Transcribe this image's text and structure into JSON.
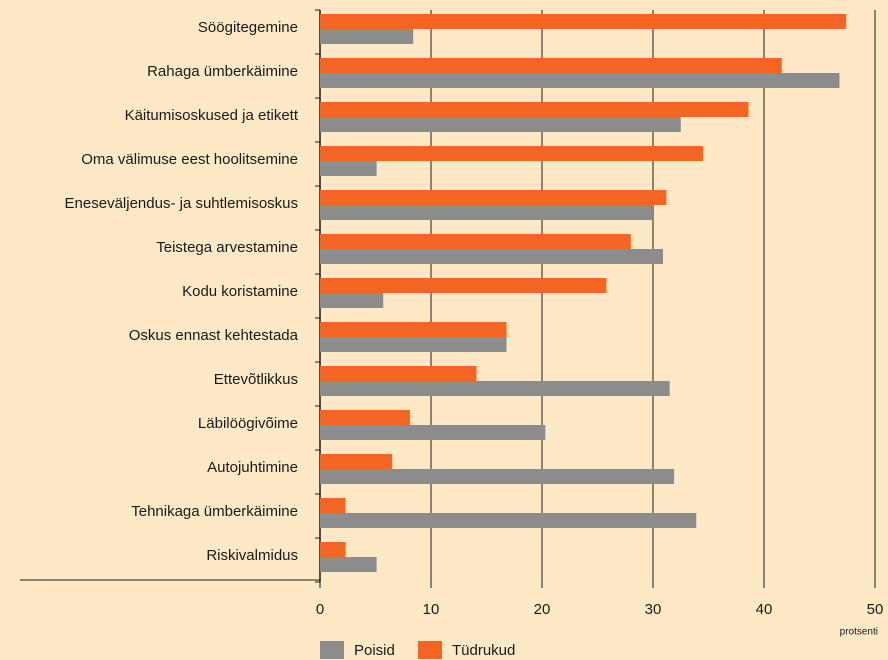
{
  "chart_data": {
    "type": "barh",
    "categories": [
      "Söögitegemine",
      "Rahaga ümberkäimine",
      "Käitumisoskused ja etikett",
      "Oma välimuse eest hoolitsemine",
      "Eneseväljendus- ja suhtlemisoskus",
      "Teistega arvestamine",
      "Kodu koristamine",
      "Oskus ennast kehtestada",
      "Ettevõtlikkus",
      "Läbilöögivõime",
      "Autojuhtimine",
      "Tehnikaga ümberkäimine",
      "Riskivalmidus"
    ],
    "series": [
      {
        "name": "Poisid",
        "color": "#8c8c8c",
        "values": [
          8.4,
          46.8,
          32.5,
          5.1,
          30.0,
          30.9,
          5.7,
          16.8,
          31.5,
          20.3,
          31.9,
          33.9,
          5.1
        ]
      },
      {
        "name": "Tüdrukud",
        "color": "#f26522",
        "values": [
          47.4,
          41.6,
          38.6,
          34.5,
          31.2,
          28.0,
          25.8,
          16.8,
          14.1,
          8.1,
          6.5,
          2.3,
          2.3
        ]
      }
    ],
    "xlim": [
      0,
      50
    ],
    "xticks": [
      0,
      10,
      20,
      30,
      40,
      50
    ],
    "xlabel": "protsenti",
    "grid": true
  }
}
